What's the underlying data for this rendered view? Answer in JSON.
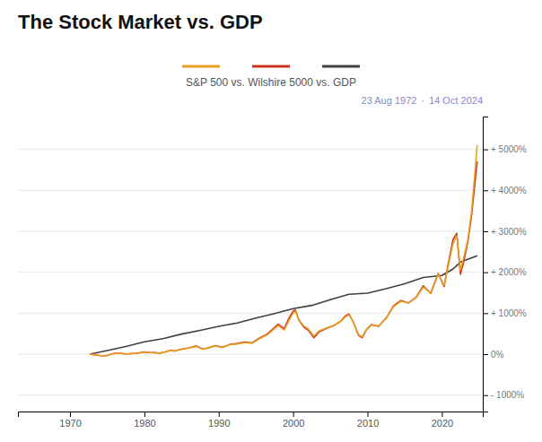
{
  "chart_data": {
    "type": "line",
    "title": "The Stock Market vs. GDP",
    "subtitle": "S&P 500 vs. Wilshire 5000 vs. GDP",
    "annotations": [
      "23 Aug 1972",
      "·",
      "14 Oct 2024"
    ],
    "xlim": [
      1963,
      2025.5
    ],
    "xticks": [
      1970,
      1980,
      1990,
      2000,
      2010,
      2020
    ],
    "ylim": [
      -1400,
      5800
    ],
    "yticks": [
      {
        "value": -1000,
        "label": "- 1000%"
      },
      {
        "value": 0,
        "label": "0%"
      },
      {
        "value": 1000,
        "label": "+ 1000%"
      },
      {
        "value": 2000,
        "label": "+ 2000%"
      },
      {
        "value": 3000,
        "label": "+ 3000%"
      },
      {
        "value": 4000,
        "label": "+ 4000%"
      },
      {
        "value": 5000,
        "label": "+ 5000%"
      }
    ],
    "grid": true,
    "series": [
      {
        "color": "#E8A020",
        "x": [
          1972.65,
          1973.3,
          1974.0,
          1974.8,
          1975.5,
          1976.0,
          1976.8,
          1977.5,
          1978.0,
          1979.0,
          1980.0,
          1980.8,
          1981.5,
          1982.0,
          1982.8,
          1983.5,
          1984.0,
          1985.0,
          1986.0,
          1987.0,
          1987.8,
          1988.5,
          1989.5,
          1990.5,
          1991.5,
          1992.5,
          1993.5,
          1994.5,
          1995.5,
          1996.5,
          1997.5,
          1998.0,
          1998.8,
          1999.5,
          2000.0,
          2000.3,
          2000.8,
          2001.5,
          2002.0,
          2002.8,
          2003.5,
          2004.5,
          2005.5,
          2006.5,
          2007.0,
          2007.5,
          2008.0,
          2008.8,
          2009.3,
          2009.8,
          2010.5,
          2011.5,
          2012.5,
          2013.5,
          2014.5,
          2015.5,
          2016.5,
          2017.5,
          2018.5,
          2019.5,
          2020.3,
          2020.8,
          2021.5,
          2022.0,
          2022.5,
          2023.0,
          2023.5,
          2024.0,
          2024.75
        ],
        "values": [
          0,
          -15,
          -35,
          -42,
          -5,
          20,
          18,
          5,
          8,
          22,
          50,
          38,
          35,
          20,
          55,
          90,
          75,
          115,
          150,
          190,
          120,
          145,
          200,
          165,
          230,
          250,
          280,
          265,
          380,
          470,
          620,
          700,
          590,
          840,
          1000,
          1050,
          820,
          680,
          620,
          440,
          570,
          640,
          700,
          810,
          910,
          960,
          820,
          480,
          420,
          590,
          720,
          690,
          870,
          1160,
          1290,
          1250,
          1370,
          1640,
          1490,
          1950,
          1680,
          2100,
          2700,
          2900,
          2050,
          2400,
          2800,
          3500,
          5100
        ]
      },
      {
        "color": "#CC3322",
        "x": [
          1972.65,
          1973.3,
          1974.0,
          1974.8,
          1975.5,
          1976.0,
          1976.8,
          1977.5,
          1978.0,
          1979.0,
          1980.0,
          1980.8,
          1981.5,
          1982.0,
          1982.8,
          1983.5,
          1984.0,
          1985.0,
          1986.0,
          1987.0,
          1987.8,
          1988.5,
          1989.5,
          1990.5,
          1991.5,
          1992.5,
          1993.5,
          1994.5,
          1995.5,
          1996.5,
          1997.5,
          1998.0,
          1998.8,
          1999.5,
          2000.0,
          2000.3,
          2000.8,
          2001.5,
          2002.0,
          2002.8,
          2003.5,
          2004.5,
          2005.5,
          2006.5,
          2007.0,
          2007.5,
          2008.0,
          2008.8,
          2009.3,
          2009.8,
          2010.5,
          2011.5,
          2012.5,
          2013.5,
          2014.5,
          2015.5,
          2016.5,
          2017.5,
          2018.5,
          2019.5,
          2020.3,
          2020.8,
          2021.5,
          2022.0,
          2022.5,
          2023.0,
          2023.5,
          2024.0,
          2024.75
        ],
        "values": [
          0,
          -14,
          -33,
          -40,
          -3,
          22,
          20,
          7,
          10,
          24,
          52,
          40,
          37,
          22,
          57,
          95,
          78,
          120,
          155,
          200,
          125,
          150,
          210,
          168,
          238,
          260,
          295,
          275,
          395,
          490,
          650,
          730,
          620,
          900,
          1050,
          1080,
          820,
          650,
          590,
          400,
          545,
          630,
          700,
          820,
          930,
          980,
          820,
          460,
          400,
          580,
          720,
          680,
          880,
          1180,
          1310,
          1250,
          1380,
          1670,
          1480,
          1970,
          1650,
          2150,
          2800,
          2950,
          1950,
          2300,
          2750,
          3400,
          4700
        ]
      },
      {
        "color": "#404040",
        "x": [
          1972.65,
          1975.0,
          1977.5,
          1980.0,
          1982.5,
          1985.0,
          1987.5,
          1990.0,
          1992.5,
          1995.0,
          1997.5,
          2000.0,
          2002.5,
          2005.0,
          2007.5,
          2010.0,
          2012.5,
          2015.0,
          2017.5,
          2020.0,
          2021.5,
          2022.5,
          2024.75
        ],
        "values": [
          0,
          90,
          185,
          300,
          380,
          490,
          580,
          680,
          760,
          880,
          990,
          1110,
          1190,
          1330,
          1460,
          1490,
          1600,
          1720,
          1870,
          1920,
          2080,
          2250,
          2400
        ]
      }
    ]
  }
}
